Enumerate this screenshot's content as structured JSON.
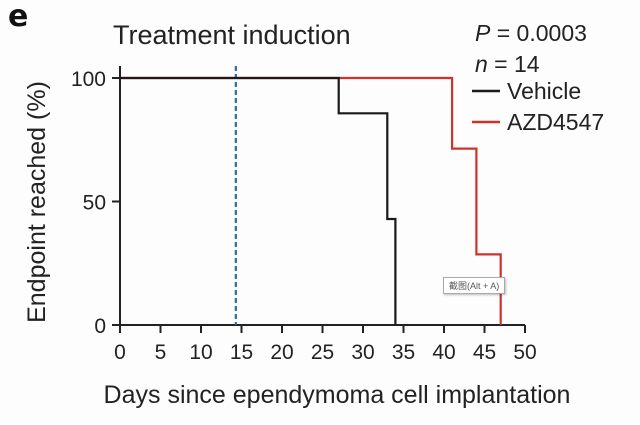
{
  "panel_letter": "e",
  "chart_data": {
    "type": "line",
    "subtype": "kaplan-meier-step",
    "title": "Treatment induction",
    "xlabel": "Days since ependymoma cell implantation",
    "ylabel": "Endpoint reached (%)",
    "xlim": [
      0,
      50
    ],
    "ylim": [
      0,
      100
    ],
    "xticks": [
      0,
      5,
      10,
      15,
      20,
      25,
      30,
      35,
      40,
      45,
      50
    ],
    "yticks": [
      0,
      50,
      100
    ],
    "grid": false,
    "annotations": {
      "p_value_label": "P",
      "p_value_text": " = 0.0003",
      "n_label": "n",
      "n_text": " = 14",
      "treatment_induction_day": 14
    },
    "legend": {
      "placement": "top-right"
    },
    "series": [
      {
        "name": "Vehicle",
        "color": "#1a1a1a",
        "x": [
          0,
          27,
          33,
          34
        ],
        "y": [
          100,
          85.7,
          42.9,
          0
        ]
      },
      {
        "name": "AZD4547",
        "color": "#d0312d",
        "x": [
          0,
          41,
          44,
          46,
          47
        ],
        "y": [
          100,
          71.4,
          28.6,
          28.6,
          0
        ]
      }
    ],
    "reference_line_color": "#2a6e9e"
  },
  "tooltip": "截图(Alt + A)"
}
